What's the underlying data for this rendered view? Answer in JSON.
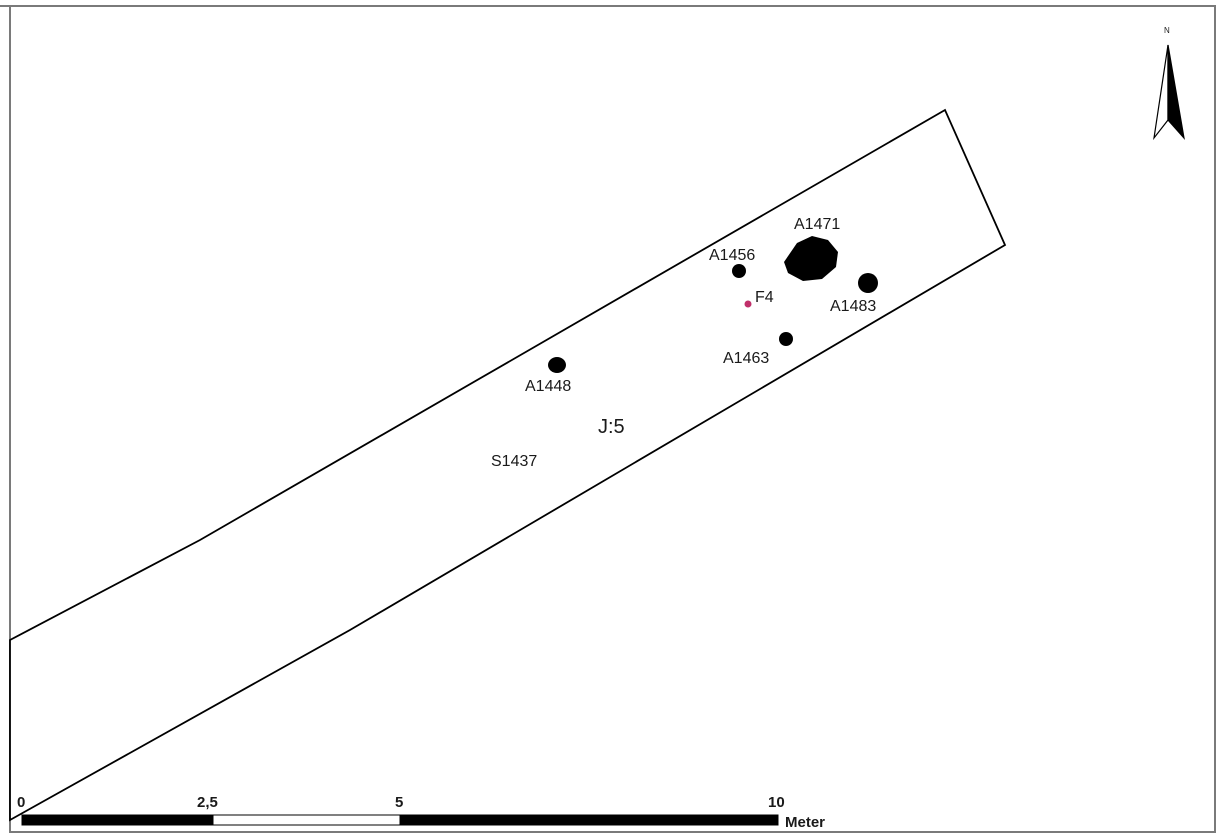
{
  "map": {
    "area_label": "J:5",
    "structure_label": "S1437",
    "north_label": "N",
    "features": [
      {
        "id": "A1471",
        "type": "pit"
      },
      {
        "id": "A1456",
        "type": "pit"
      },
      {
        "id": "A1483",
        "type": "pit"
      },
      {
        "id": "A1463",
        "type": "pit"
      },
      {
        "id": "A1448",
        "type": "pit"
      }
    ],
    "finds": [
      {
        "id": "F4",
        "color": "#c0306a"
      }
    ]
  },
  "scale_bar": {
    "ticks": [
      "0",
      "2,5",
      "5",
      "10"
    ],
    "unit": "Meter"
  }
}
